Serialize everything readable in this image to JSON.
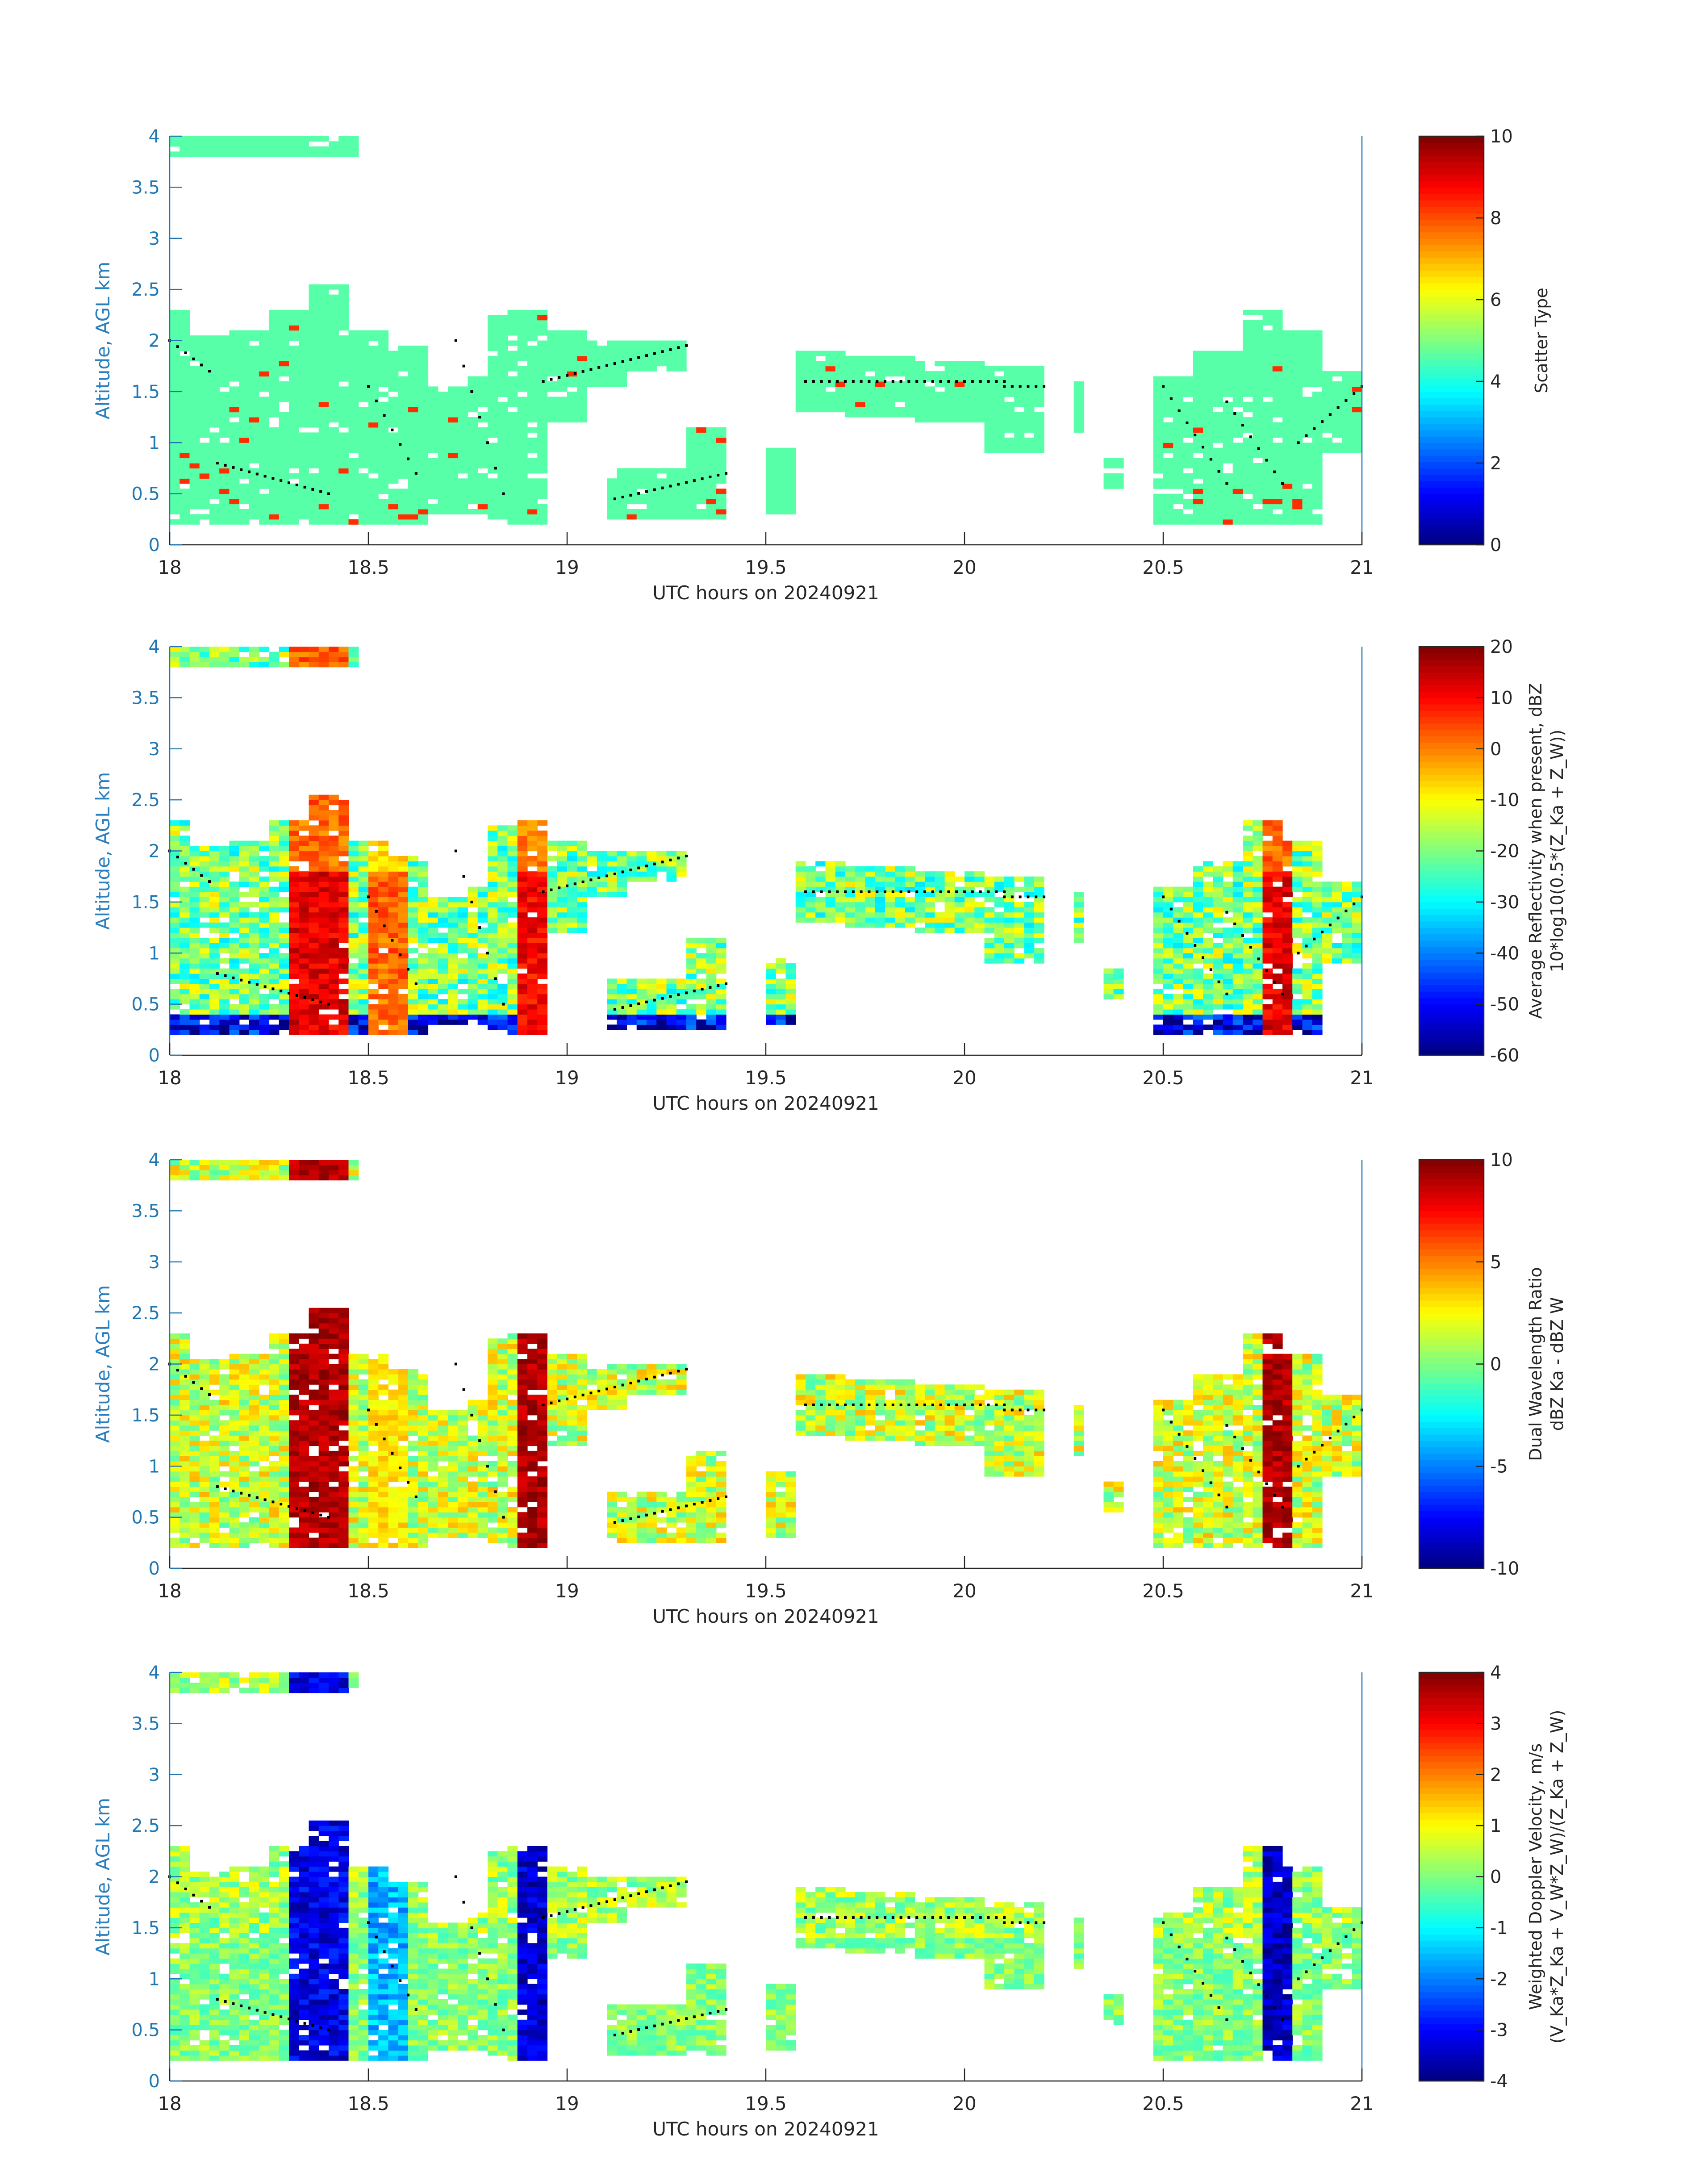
{
  "figure": {
    "shared_xlabel": "UTC hours on 20240921",
    "shared_ylabel": "Altitude, AGL km"
  },
  "chart_data": [
    {
      "type": "heatmap",
      "title": "",
      "xlabel": "UTC hours on 20240921",
      "ylabel": "Altitude, AGL km",
      "xlim": [
        18,
        21
      ],
      "ylim": [
        0,
        4
      ],
      "xticks": [
        "18",
        "18.5",
        "19",
        "19.5",
        "20",
        "20.5",
        "21"
      ],
      "yticks": [
        "0",
        "0.5",
        "1",
        "1.5",
        "2",
        "2.5",
        "3",
        "3.5",
        "4"
      ],
      "colorbar": {
        "label_lines": [
          "Scatter Type"
        ],
        "range": [
          0,
          10
        ],
        "ticks": [
          "0",
          "2",
          "4",
          "6",
          "8",
          "10"
        ],
        "colormap": "jet"
      },
      "field_value": 4.6,
      "accent_value": 8.3,
      "note_color_field": "#40f5d6",
      "accent_color": "#f2521e"
    },
    {
      "type": "heatmap",
      "title": "",
      "xlabel": "UTC hours on 20240921",
      "ylabel": "Altitude, AGL km",
      "xlim": [
        18,
        21
      ],
      "ylim": [
        0,
        4
      ],
      "xticks": [
        "18",
        "18.5",
        "19",
        "19.5",
        "20",
        "20.5",
        "21"
      ],
      "yticks": [
        "0",
        "0.5",
        "1",
        "1.5",
        "2",
        "2.5",
        "3",
        "3.5",
        "4"
      ],
      "colorbar": {
        "label_lines": [
          "Average Reflectivity when present, dBZ",
          "10*log10(0.5*(Z_Ka + Z_W))"
        ],
        "range": [
          -60,
          20
        ],
        "ticks": [
          "-60",
          "-50",
          "-40",
          "-30",
          "-20",
          "-10",
          "0",
          "10",
          "20"
        ],
        "colormap": "jet"
      }
    },
    {
      "type": "heatmap",
      "title": "",
      "xlabel": "UTC hours on 20240921",
      "ylabel": "Altitude, AGL km",
      "xlim": [
        18,
        21
      ],
      "ylim": [
        0,
        4
      ],
      "xticks": [
        "18",
        "18.5",
        "19",
        "19.5",
        "20",
        "20.5",
        "21"
      ],
      "yticks": [
        "0",
        "0.5",
        "1",
        "1.5",
        "2",
        "2.5",
        "3",
        "3.5",
        "4"
      ],
      "colorbar": {
        "label_lines": [
          "Dual Wavelength Ratio",
          "dBZ Ka - dBZ W"
        ],
        "range": [
          -10,
          10
        ],
        "ticks": [
          "-10",
          "-5",
          "0",
          "5",
          "10"
        ],
        "colormap": "jet"
      }
    },
    {
      "type": "heatmap",
      "title": "",
      "xlabel": "UTC hours on 20240921",
      "ylabel": "Altitude, AGL km",
      "xlim": [
        18,
        21
      ],
      "ylim": [
        0,
        4
      ],
      "xticks": [
        "18",
        "18.5",
        "19",
        "19.5",
        "20",
        "20.5",
        "21"
      ],
      "yticks": [
        "0",
        "0.5",
        "1",
        "1.5",
        "2",
        "2.5",
        "3",
        "3.5",
        "4"
      ],
      "colorbar": {
        "label_lines": [
          "Weighted Doppler Velocity, m/s",
          "(V_Ka*Z_Ka + V_W*Z_W)/(Z_Ka + Z_W)"
        ],
        "range": [
          -4,
          4
        ],
        "ticks": [
          "-4",
          "-3",
          "-2",
          "-1",
          "0",
          "1",
          "2",
          "3",
          "4"
        ],
        "colormap": "jet"
      }
    }
  ],
  "cloud_mask": {
    "note": "approximate echo extent read from the image, altitude in km AGL",
    "segments": [
      {
        "x0": 18.0,
        "x1": 18.04,
        "top": 2.3,
        "bot": 0.2
      },
      {
        "x0": 18.04,
        "x1": 18.15,
        "top": 2.05,
        "bot": 0.2
      },
      {
        "x0": 18.15,
        "x1": 18.25,
        "top": 2.1,
        "bot": 0.2
      },
      {
        "x0": 18.25,
        "x1": 18.36,
        "top": 2.3,
        "bot": 0.2
      },
      {
        "x0": 18.36,
        "x1": 18.46,
        "top": 2.55,
        "bot": 0.2
      },
      {
        "x0": 18.46,
        "x1": 18.54,
        "top": 2.1,
        "bot": 0.2
      },
      {
        "x0": 18.54,
        "x1": 18.64,
        "top": 1.95,
        "bot": 0.2
      },
      {
        "x0": 18.64,
        "x1": 18.74,
        "top": 1.55,
        "bot": 0.3
      },
      {
        "x0": 18.74,
        "x1": 18.8,
        "top": 1.65,
        "bot": 0.3
      },
      {
        "x0": 18.8,
        "x1": 18.86,
        "top": 2.25,
        "bot": 0.25
      },
      {
        "x0": 18.86,
        "x1": 18.96,
        "top": 2.3,
        "bot": 0.2
      },
      {
        "x0": 18.96,
        "x1": 19.05,
        "top": 2.1,
        "bot": 1.2
      },
      {
        "x0": 19.05,
        "x1": 19.15,
        "top": 2.0,
        "bot": 1.55
      },
      {
        "x0": 19.15,
        "x1": 19.3,
        "top": 2.0,
        "bot": 1.7
      },
      {
        "x0": 19.1,
        "x1": 19.3,
        "top": 0.75,
        "bot": 0.25
      },
      {
        "x0": 19.3,
        "x1": 19.4,
        "top": 1.15,
        "bot": 0.25
      },
      {
        "x0": 19.5,
        "x1": 19.58,
        "top": 0.95,
        "bot": 0.3
      },
      {
        "x0": 19.58,
        "x1": 19.7,
        "top": 1.9,
        "bot": 1.3
      },
      {
        "x0": 19.7,
        "x1": 19.88,
        "top": 1.85,
        "bot": 1.25
      },
      {
        "x0": 19.88,
        "x1": 20.05,
        "top": 1.8,
        "bot": 1.2
      },
      {
        "x0": 20.05,
        "x1": 20.2,
        "top": 1.75,
        "bot": 0.9
      },
      {
        "x0": 20.28,
        "x1": 20.3,
        "top": 1.6,
        "bot": 1.1
      },
      {
        "x0": 20.35,
        "x1": 20.4,
        "top": 0.85,
        "bot": 0.55
      },
      {
        "x0": 20.48,
        "x1": 20.58,
        "top": 1.65,
        "bot": 0.2
      },
      {
        "x0": 20.58,
        "x1": 20.7,
        "top": 1.9,
        "bot": 0.2
      },
      {
        "x0": 20.7,
        "x1": 20.8,
        "top": 2.3,
        "bot": 0.2
      },
      {
        "x0": 20.8,
        "x1": 20.9,
        "top": 2.1,
        "bot": 0.2
      },
      {
        "x0": 20.9,
        "x1": 21.0,
        "top": 1.7,
        "bot": 0.9
      }
    ],
    "top_layer": {
      "x0": 18.0,
      "x1": 18.47,
      "top": 4.0,
      "bot": 3.8
    },
    "core_columns": [
      {
        "x0": 18.3,
        "x1": 18.46,
        "dbz": 12,
        "dwr": 9,
        "vel": -3.2
      },
      {
        "x0": 18.5,
        "x1": 18.6,
        "dbz": 2,
        "dwr": 3,
        "vel": -1.6
      },
      {
        "x0": 18.88,
        "x1": 18.94,
        "dbz": 10,
        "dwr": 9,
        "vel": -3.4
      },
      {
        "x0": 20.74,
        "x1": 20.82,
        "dbz": 12,
        "dwr": 9,
        "vel": -3.5
      }
    ],
    "melting_dots": [
      {
        "x0": 18.0,
        "x1": 18.1,
        "y0": 2.0,
        "y1": 1.7
      },
      {
        "x0": 18.12,
        "x1": 18.4,
        "y0": 0.8,
        "y1": 0.5
      },
      {
        "x0": 18.5,
        "x1": 18.62,
        "y0": 1.55,
        "y1": 0.7
      },
      {
        "x0": 18.72,
        "x1": 18.84,
        "y0": 2.0,
        "y1": 0.5
      },
      {
        "x0": 18.94,
        "x1": 19.3,
        "y0": 1.6,
        "y1": 1.95
      },
      {
        "x0": 19.12,
        "x1": 19.4,
        "y0": 0.45,
        "y1": 0.7
      },
      {
        "x0": 19.6,
        "x1": 20.1,
        "y0": 1.6,
        "y1": 1.6
      },
      {
        "x0": 20.1,
        "x1": 20.2,
        "y0": 1.55,
        "y1": 1.55
      },
      {
        "x0": 20.5,
        "x1": 20.66,
        "y0": 1.55,
        "y1": 0.6
      },
      {
        "x0": 20.66,
        "x1": 20.8,
        "y0": 1.4,
        "y1": 0.6
      },
      {
        "x0": 20.84,
        "x1": 21.0,
        "y0": 1.0,
        "y1": 1.55
      }
    ]
  }
}
